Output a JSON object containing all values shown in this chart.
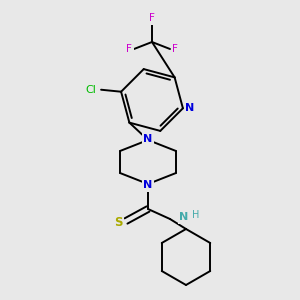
{
  "background_color": "#e8e8e8",
  "bond_color": "#000000",
  "atom_colors": {
    "N": "#0000dd",
    "F": "#cc00cc",
    "Cl": "#00bb00",
    "S": "#aaaa00",
    "NH": "#44aaaa",
    "C": "#000000"
  },
  "line_width": 1.4,
  "figsize": [
    3.0,
    3.0
  ],
  "dpi": 100
}
